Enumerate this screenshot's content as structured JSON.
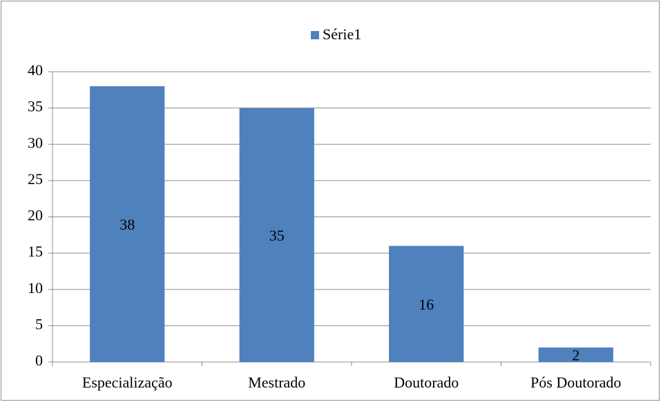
{
  "chart_data": {
    "type": "bar",
    "categories": [
      "Especialização",
      "Mestrado",
      "Doutorado",
      "Pós Doutorado"
    ],
    "series": [
      {
        "name": "Série1",
        "color": "#4f81bd",
        "values": [
          38,
          35,
          16,
          2
        ]
      }
    ],
    "ylim": [
      0,
      40
    ],
    "yticks": [
      0,
      5,
      10,
      15,
      20,
      25,
      30,
      35,
      40
    ],
    "grid": true,
    "legend": "top",
    "data_labels": true
  }
}
